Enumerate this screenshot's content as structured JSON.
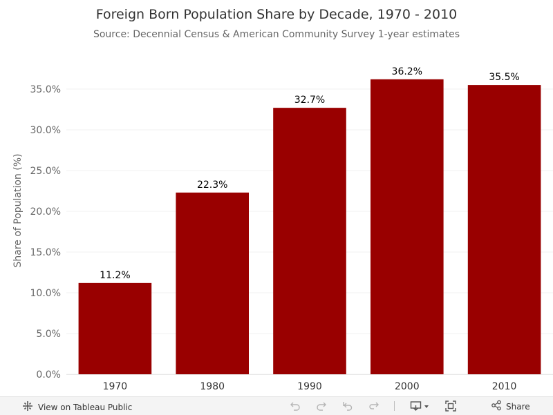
{
  "chart_data": {
    "type": "bar",
    "title": "Foreign Born Population Share by Decade, 1970 - 2010",
    "subtitle": "Source: Decennial Census & American Community Survey 1-year estimates",
    "xlabel": "",
    "ylabel": "Share of Population (%)",
    "categories": [
      "1970",
      "1980",
      "1990",
      "2000",
      "2010"
    ],
    "values": [
      11.2,
      22.3,
      32.7,
      36.2,
      35.5
    ],
    "value_labels": [
      "11.2%",
      "22.3%",
      "32.7%",
      "36.2%",
      "35.5%"
    ],
    "ylim": [
      0,
      37.5
    ],
    "yticks": [
      0,
      5,
      10,
      15,
      20,
      25,
      30,
      35
    ],
    "ytick_labels": [
      "0.0%",
      "5.0%",
      "10.0%",
      "15.0%",
      "20.0%",
      "25.0%",
      "30.0%",
      "35.0%"
    ],
    "grid": true,
    "bar_color": "#990000"
  },
  "toolbar": {
    "view_label": "View on Tableau Public",
    "share_label": "Share",
    "icons": [
      "tableau-logo-icon",
      "undo-icon",
      "redo-icon",
      "revert-icon",
      "refresh-icon",
      "download-icon",
      "fullscreen-icon",
      "share-icon"
    ]
  }
}
